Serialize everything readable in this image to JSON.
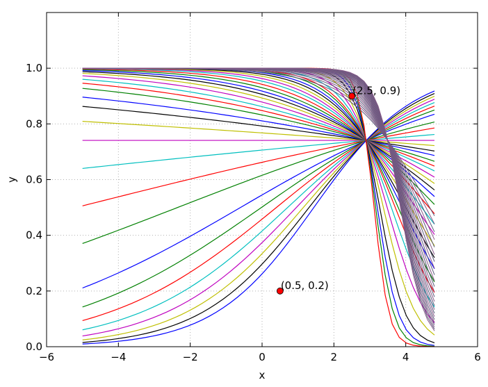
{
  "chart_data": {
    "type": "line",
    "title": "",
    "xlabel": "x",
    "ylabel": "y",
    "xlim": [
      -6,
      6
    ],
    "ylim": [
      0.0,
      1.2
    ],
    "xticks": [
      -6,
      -4,
      -2,
      0,
      2,
      4,
      6
    ],
    "yticks": [
      0.0,
      0.2,
      0.4,
      0.6,
      0.8,
      1.0
    ],
    "xtick_labels": [
      "−6",
      "−4",
      "−2",
      "0",
      "2",
      "4",
      "6"
    ],
    "ytick_labels": [
      "0.0",
      "0.2",
      "0.4",
      "0.6",
      "0.8",
      "1.0"
    ],
    "grid": true,
    "legend": false,
    "curve_family": {
      "description_formula": "y = 1/(1+exp(-k*(x-c))) with k decreasing to strongly negative; curves pass near (2.9, 0.74)",
      "x_start": -5.0,
      "x_end": 4.8,
      "center": 2.9,
      "k_values": [
        0.3,
        0.36,
        0.42,
        0.48,
        0.54,
        0.6,
        0.66,
        0.72,
        0.2,
        0.13,
        0.06,
        0.0,
        -0.05,
        -0.1,
        -0.14,
        -0.19,
        -0.23,
        -0.27,
        -0.32,
        -0.37,
        -0.42,
        -0.47,
        -0.53,
        -0.6,
        -0.68,
        -0.76,
        -0.85,
        -0.95,
        -1.05,
        -1.18,
        -1.3,
        -1.5,
        -1.8,
        -2.2,
        -2.8,
        -3.4,
        -4.0,
        -4.8
      ],
      "colors": [
        "#0000ff",
        "#008000",
        "#ff0000",
        "#00bfbf",
        "#bf00bf",
        "#bfbf00",
        "#000000"
      ]
    },
    "points": [
      {
        "x": 0.5,
        "y": 0.2,
        "label": "(0.5, 0.2)"
      },
      {
        "x": 2.5,
        "y": 0.9,
        "label": "(2.5, 0.9)"
      }
    ],
    "point_color": "#ff0000"
  }
}
